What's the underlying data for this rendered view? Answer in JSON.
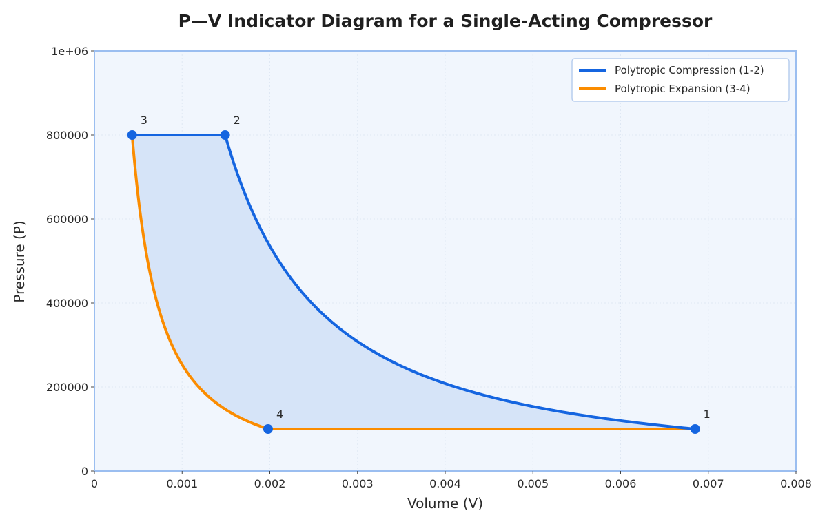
{
  "chart_data": {
    "type": "line",
    "title": "P—V Indicator Diagram for a Single-Acting Compressor",
    "xlabel": "Volume (V)",
    "ylabel": "Pressure (P)",
    "xlim": [
      0,
      0.008
    ],
    "ylim": [
      0,
      1000000
    ],
    "xticks": [
      0,
      0.001,
      0.002,
      0.003,
      0.004,
      0.005,
      0.006,
      0.007,
      0.008
    ],
    "xtick_labels": [
      "0",
      "0.001",
      "0.002",
      "0.003",
      "0.004",
      "0.005",
      "0.006",
      "0.007",
      "0.008"
    ],
    "yticks": [
      0,
      200000,
      400000,
      600000,
      800000,
      1000000
    ],
    "ytick_labels": [
      "0",
      "200000",
      "400000",
      "600000",
      "800000",
      "1e+06"
    ],
    "grid": true,
    "legend_position": "top-right",
    "colors": {
      "compression": "#1565e0",
      "expansion": "#fb8c00",
      "points": "#1565e0",
      "fill": "#d6e4f8",
      "plot_bg": "#f1f6fd",
      "frame": "#9bbef0",
      "grid": "#dfe8f4"
    },
    "points": [
      {
        "label": "1",
        "V": 0.00685,
        "P": 100000
      },
      {
        "label": "2",
        "V": 0.00149,
        "P": 800000
      },
      {
        "label": "3",
        "V": 0.00043,
        "P": 800000
      },
      {
        "label": "4",
        "V": 0.00198,
        "P": 100000
      }
    ],
    "series": [
      {
        "name": "Polytropic Compression (1-2)",
        "from_point": "1",
        "to_point": "2",
        "curve": "polytropic"
      },
      {
        "name": "Polytropic Expansion (3-4)",
        "from_point": "3",
        "to_point": "4",
        "curve": "polytropic"
      }
    ],
    "unlabeled_lines": [
      {
        "from_point": "2",
        "to_point": "3",
        "process": "constant-pressure delivery"
      },
      {
        "from_point": "4",
        "to_point": "1",
        "process": "constant-pressure suction"
      }
    ]
  }
}
